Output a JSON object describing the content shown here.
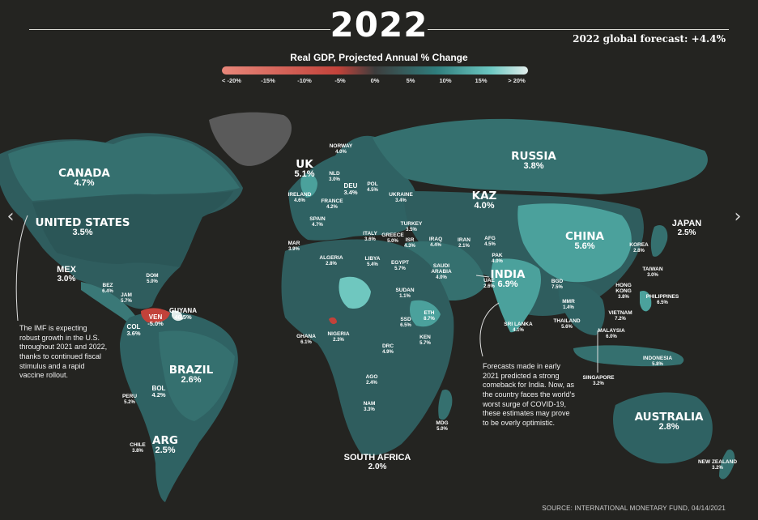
{
  "header": {
    "year": "2022",
    "global_forecast": "2022 global forecast: +4.4%"
  },
  "legend": {
    "title": "Real GDP, Projected Annual % Change",
    "ticks": [
      "< -20%",
      "-15%",
      "-10%",
      "-5%",
      "0%",
      "5%",
      "10%",
      "15%",
      "> 20%"
    ]
  },
  "countries": [
    {
      "id": "canada",
      "name": "CANADA",
      "value": "4.7%",
      "size": "xl"
    },
    {
      "id": "us",
      "name": "UNITED STATES",
      "value": "3.5%",
      "size": "xl"
    },
    {
      "id": "mex",
      "name": "MEX",
      "value": "3.0%",
      "size": "lg"
    },
    {
      "id": "bez",
      "name": "BEZ",
      "value": "6.4%",
      "size": "sm"
    },
    {
      "id": "jam",
      "name": "JAM",
      "value": "5.7%",
      "size": "sm"
    },
    {
      "id": "dom",
      "name": "DOM",
      "value": "5.0%",
      "size": "sm"
    },
    {
      "id": "col",
      "name": "COL",
      "value": "3.6%",
      "size": "md"
    },
    {
      "id": "ven",
      "name": "VEN",
      "value": "-5.0%",
      "size": "md"
    },
    {
      "id": "guyana",
      "name": "GUYANA",
      "value": "46.5%",
      "size": "md"
    },
    {
      "id": "brazil",
      "name": "BRAZIL",
      "value": "2.6%",
      "size": "xl"
    },
    {
      "id": "peru",
      "name": "PERU",
      "value": "5.2%",
      "size": "sm"
    },
    {
      "id": "bol",
      "name": "BOL",
      "value": "4.2%",
      "size": "md"
    },
    {
      "id": "arg",
      "name": "ARG",
      "value": "2.5%",
      "size": "xl"
    },
    {
      "id": "chile",
      "name": "CHILE",
      "value": "3.8%",
      "size": "sm"
    },
    {
      "id": "uk",
      "name": "UK",
      "value": "5.1%",
      "size": "xl"
    },
    {
      "id": "ireland",
      "name": "IRELAND",
      "value": "4.6%",
      "size": "sm"
    },
    {
      "id": "norway",
      "name": "NORWAY",
      "value": "4.0%",
      "size": "sm"
    },
    {
      "id": "nld",
      "name": "NLD",
      "value": "3.0%",
      "size": "sm"
    },
    {
      "id": "deu",
      "name": "DEU",
      "value": "3.4%",
      "size": "md"
    },
    {
      "id": "pol",
      "name": "POL",
      "value": "4.5%",
      "size": "sm"
    },
    {
      "id": "france",
      "name": "FRANCE",
      "value": "4.2%",
      "size": "sm"
    },
    {
      "id": "ukraine",
      "name": "UKRAINE",
      "value": "3.4%",
      "size": "sm"
    },
    {
      "id": "spain",
      "name": "SPAIN",
      "value": "4.7%",
      "size": "sm"
    },
    {
      "id": "italy",
      "name": "ITALY",
      "value": "3.6%",
      "size": "sm"
    },
    {
      "id": "greece",
      "name": "GREECE",
      "value": "5.0%",
      "size": "sm"
    },
    {
      "id": "turkey",
      "name": "TURKEY",
      "value": "3.5%",
      "size": "sm"
    },
    {
      "id": "isr",
      "name": "ISR",
      "value": "4.3%",
      "size": "sm"
    },
    {
      "id": "russia",
      "name": "RUSSIA",
      "value": "3.8%",
      "size": "xl"
    },
    {
      "id": "kaz",
      "name": "KAZ",
      "value": "4.0%",
      "size": "xl"
    },
    {
      "id": "mar",
      "name": "MAR",
      "value": "3.9%",
      "size": "sm"
    },
    {
      "id": "algeria",
      "name": "ALGERIA",
      "value": "2.8%",
      "size": "sm"
    },
    {
      "id": "libya",
      "name": "LIBYA",
      "value": "5.4%",
      "size": "sm"
    },
    {
      "id": "egypt",
      "name": "EGYPT",
      "value": "5.7%",
      "size": "sm"
    },
    {
      "id": "iraq",
      "name": "IRAQ",
      "value": "4.4%",
      "size": "sm"
    },
    {
      "id": "iran",
      "name": "IRAN",
      "value": "2.1%",
      "size": "sm"
    },
    {
      "id": "afg",
      "name": "AFG",
      "value": "4.5%",
      "size": "sm"
    },
    {
      "id": "pak",
      "name": "PAK",
      "value": "4.0%",
      "size": "sm"
    },
    {
      "id": "saudi",
      "name": "SAUDI ARABIA",
      "value": "4.0%",
      "size": "sm"
    },
    {
      "id": "uae",
      "name": "UAE",
      "value": "2.6%",
      "size": "sm"
    },
    {
      "id": "sudan",
      "name": "SUDAN",
      "value": "1.1%",
      "size": "sm"
    },
    {
      "id": "eth",
      "name": "ETH",
      "value": "8.7%",
      "size": "sm"
    },
    {
      "id": "ssd",
      "name": "SSD",
      "value": "6.5%",
      "size": "sm"
    },
    {
      "id": "ken",
      "name": "KEN",
      "value": "5.7%",
      "size": "sm"
    },
    {
      "id": "drc",
      "name": "DRC",
      "value": "4.9%",
      "size": "sm"
    },
    {
      "id": "ghana",
      "name": "GHANA",
      "value": "6.1%",
      "size": "sm"
    },
    {
      "id": "nigeria",
      "name": "NIGERIA",
      "value": "2.3%",
      "size": "sm"
    },
    {
      "id": "ago",
      "name": "AGO",
      "value": "2.4%",
      "size": "sm"
    },
    {
      "id": "nam",
      "name": "NAM",
      "value": "3.3%",
      "size": "sm"
    },
    {
      "id": "mdg",
      "name": "MDG",
      "value": "5.0%",
      "size": "sm"
    },
    {
      "id": "southafrica",
      "name": "SOUTH AFRICA",
      "value": "2.0%",
      "size": "lg"
    },
    {
      "id": "india",
      "name": "INDIA",
      "value": "6.9%",
      "size": "xl"
    },
    {
      "id": "china",
      "name": "CHINA",
      "value": "5.6%",
      "size": "xl"
    },
    {
      "id": "japan",
      "name": "JAPAN",
      "value": "2.5%",
      "size": "lg"
    },
    {
      "id": "korea",
      "name": "KOREA",
      "value": "2.8%",
      "size": "sm"
    },
    {
      "id": "taiwan",
      "name": "TAIWAN",
      "value": "3.0%",
      "size": "sm"
    },
    {
      "id": "hongkong",
      "name": "HONG KONG",
      "value": "3.8%",
      "size": "sm"
    },
    {
      "id": "philippines",
      "name": "PHILIPPINES",
      "value": "6.5%",
      "size": "sm"
    },
    {
      "id": "bgd",
      "name": "BGD",
      "value": "7.5%",
      "size": "sm"
    },
    {
      "id": "mmr",
      "name": "MMR",
      "value": "1.4%",
      "size": "sm"
    },
    {
      "id": "thailand",
      "name": "THAILAND",
      "value": "5.6%",
      "size": "sm"
    },
    {
      "id": "vietnam",
      "name": "VIETNAM",
      "value": "7.2%",
      "size": "sm"
    },
    {
      "id": "malaysia",
      "name": "MALAYSIA",
      "value": "6.0%",
      "size": "sm"
    },
    {
      "id": "srilanka",
      "name": "SRI LANKA",
      "value": "4.1%",
      "size": "sm"
    },
    {
      "id": "singapore",
      "name": "SINGAPORE",
      "value": "3.2%",
      "size": "sm"
    },
    {
      "id": "indonesia",
      "name": "INDONESIA",
      "value": "5.8%",
      "size": "sm"
    },
    {
      "id": "australia",
      "name": "AUSTRALIA",
      "value": "2.8%",
      "size": "xl"
    },
    {
      "id": "newzealand",
      "name": "NEW ZEALAND",
      "value": "3.2%",
      "size": "sm"
    }
  ],
  "notes": {
    "us_note": "The IMF is expecting\nrobust growth in the U.S.\nthroughout 2021 and 2022,\nthanks to continued fiscal\nstimulus and a rapid\nvaccine rollout.",
    "india_note": "Forecasts made in early\n2021 predicted a strong\ncomeback for India. Now, as\nthe country faces the world’s\nworst surge of COVID-19,\nthese estimates may prove\nto be overly optimistic."
  },
  "nav": {
    "prev_icon": "chevron-left-icon",
    "next_icon": "chevron-right-icon",
    "prev_glyph": "‹",
    "next_glyph": "›"
  },
  "source": "SOURCE: INTERNATIONAL MONETARY FUND, 04/14/2021",
  "colors": {
    "background": "#242421",
    "land_base": "#2f5d5e",
    "land_dark": "#264a4c",
    "land_mid": "#35706f",
    "land_light": "#4ba19c",
    "land_bright": "#6fc7bf",
    "negative": "#c2423a",
    "greenland": "#5a5a5a"
  }
}
